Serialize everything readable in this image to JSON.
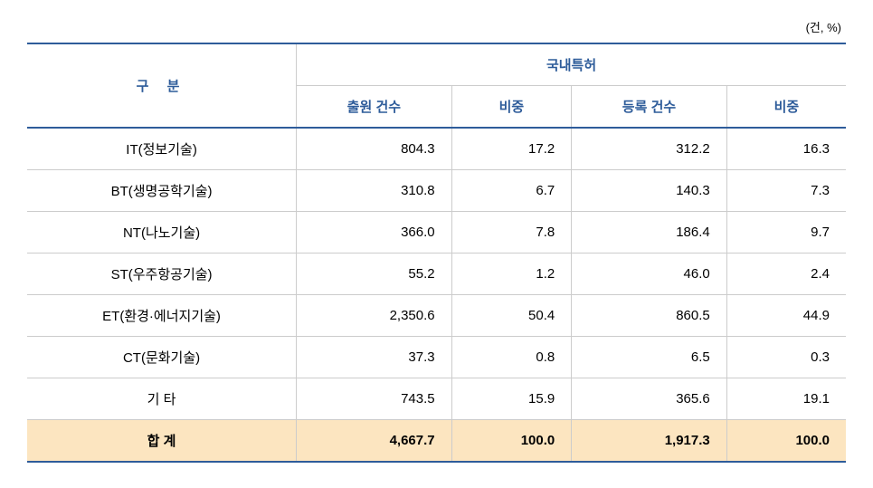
{
  "unit_label": "(건, %)",
  "headers": {
    "category": "구  분",
    "main": "국내특허",
    "sub": [
      "출원 건수",
      "비중",
      "등록 건수",
      "비중"
    ]
  },
  "rows": [
    {
      "label": "IT(정보기술)",
      "values": [
        "804.3",
        "17.2",
        "312.2",
        "16.3"
      ]
    },
    {
      "label": "BT(생명공학기술)",
      "values": [
        "310.8",
        "6.7",
        "140.3",
        "7.3"
      ]
    },
    {
      "label": "NT(나노기술)",
      "values": [
        "366.0",
        "7.8",
        "186.4",
        "9.7"
      ]
    },
    {
      "label": "ST(우주항공기술)",
      "values": [
        "55.2",
        "1.2",
        "46.0",
        "2.4"
      ]
    },
    {
      "label": "ET(환경·에너지기술)",
      "values": [
        "2,350.6",
        "50.4",
        "860.5",
        "44.9"
      ]
    },
    {
      "label": "CT(문화기술)",
      "values": [
        "37.3",
        "0.8",
        "6.5",
        "0.3"
      ]
    },
    {
      "label": "기      타",
      "values": [
        "743.5",
        "15.9",
        "365.6",
        "19.1"
      ]
    }
  ],
  "total": {
    "label": "합      계",
    "values": [
      "4,667.7",
      "100.0",
      "1,917.3",
      "100.0"
    ]
  },
  "styling": {
    "border_color": "#2e5c9a",
    "header_text_color": "#2e5c9a",
    "cell_border_color": "#cccccc",
    "total_bg_color": "#fce5c0",
    "body_bg": "#ffffff",
    "font_size_header": 15,
    "font_size_body": 15,
    "font_size_unit": 13
  }
}
